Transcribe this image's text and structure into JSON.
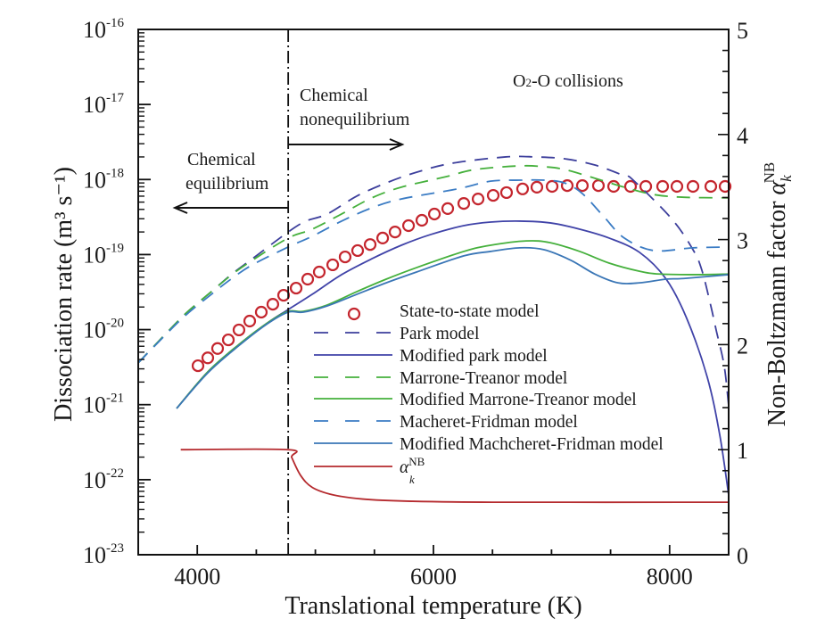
{
  "chart_data": {
    "type": "line",
    "xlabel": "Translational temperature (K)",
    "ylabel": "Dissociation rate (m³ s⁻¹)",
    "y2label": {
      "text": "Non-Boltzmann factor ",
      "symbol": "α",
      "sub": "k",
      "sup": "NB"
    },
    "xlim": [
      3500,
      8500
    ],
    "ylim": [
      1e-23,
      1e-16
    ],
    "yscale": "log",
    "y2lim": [
      0,
      5
    ],
    "xticks": [
      "4000",
      "6000",
      "8000"
    ],
    "xtick_values": [
      4000,
      6000,
      8000
    ],
    "yticks": [
      {
        "base": "10",
        "exp": "-16"
      },
      {
        "base": "10",
        "exp": "-17"
      },
      {
        "base": "10",
        "exp": "-18"
      },
      {
        "base": "10",
        "exp": "-19"
      },
      {
        "base": "10",
        "exp": "-20"
      },
      {
        "base": "10",
        "exp": "-21"
      },
      {
        "base": "10",
        "exp": "-22"
      },
      {
        "base": "10",
        "exp": "-23"
      }
    ],
    "y2ticks": [
      "0",
      "1",
      "2",
      "3",
      "4",
      "5"
    ],
    "grid": false,
    "legend_position": "lower-center",
    "annotations": {
      "title": "O2-O collisions",
      "title_main": "O",
      "title_sub": "2",
      "title_rest": "-O collisions",
      "nonequilibrium_line1": "Chemical",
      "nonequilibrium_line2": "nonequilibrium",
      "equilibrium_line1": "Chemical",
      "equilibrium_line2": "equilibrium",
      "boundary_temperature": 4770
    },
    "series": [
      {
        "name": "State-to-state model",
        "style": "markers-circle",
        "color": "#c4262e",
        "axis": "left",
        "x": [
          4006,
          4089,
          4172,
          4263,
          4353,
          4444,
          4542,
          4640,
          4731,
          4837,
          4935,
          5033,
          5147,
          5252,
          5358,
          5464,
          5570,
          5675,
          5789,
          5902,
          6008,
          6121,
          6257,
          6378,
          6506,
          6619,
          6755,
          6876,
          7005,
          7133,
          7261,
          7397,
          7526,
          7669,
          7798,
          7941,
          8062,
          8198,
          8349,
          8470
        ],
        "y": [
          3.3e-21,
          4.2e-21,
          5.6e-21,
          7.3e-21,
          9.9e-21,
          1.3e-20,
          1.71e-20,
          2.18e-20,
          2.87e-20,
          3.57e-20,
          4.7e-20,
          5.85e-20,
          7.3e-20,
          9.3e-20,
          1.13e-19,
          1.36e-19,
          1.66e-19,
          2e-19,
          2.43e-19,
          2.86e-19,
          3.47e-19,
          4.1e-19,
          4.8e-19,
          5.5e-19,
          6.15e-19,
          6.7e-19,
          7.5e-19,
          7.9e-19,
          8.1e-19,
          8.3e-19,
          8.3e-19,
          8.3e-19,
          8.1e-19,
          8.1e-19,
          8.1e-19,
          8.1e-19,
          8.1e-19,
          8.1e-19,
          8.1e-19,
          8.1e-19
        ]
      },
      {
        "name": "Park model",
        "style": "dashed",
        "color": "#3d3f9c",
        "axis": "left",
        "x": [
          3500,
          3764,
          3915,
          4119,
          4293,
          4467,
          4770,
          4920,
          5101,
          5350,
          5600,
          5857,
          6159,
          6612,
          6861,
          7110,
          7367,
          7616,
          7692,
          8017,
          8198,
          8273,
          8349,
          8394,
          8462,
          8500
        ],
        "y": [
          3.6e-21,
          9.9e-21,
          1.71e-20,
          3.2e-20,
          5.5e-20,
          8.8e-20,
          2e-19,
          2.79e-19,
          3.47e-19,
          6e-19,
          9e-19,
          1.25e-18,
          1.65e-18,
          2e-18,
          2e-18,
          1.89e-18,
          1.56e-18,
          1.12e-18,
          9.8e-19,
          3e-19,
          1.16e-19,
          6.2e-20,
          2.07e-20,
          9.9e-21,
          3.3e-21,
          9.7e-22
        ]
      },
      {
        "name": "Modified park model",
        "style": "solid",
        "color": "#4043a8",
        "axis": "left",
        "x": [
          3825,
          4089,
          4346,
          4595,
          4770,
          4973,
          5222,
          5479,
          5728,
          5977,
          6257,
          6483,
          6733,
          6989,
          7239,
          7488,
          7745,
          7971,
          8145,
          8319,
          8424,
          8500
        ],
        "y": [
          8.9e-22,
          2.73e-21,
          6.2e-21,
          1.23e-20,
          1.85e-20,
          2.95e-20,
          5.4e-20,
          8.8e-20,
          1.33e-19,
          1.85e-19,
          2.43e-19,
          2.71e-19,
          2.79e-19,
          2.64e-19,
          2.18e-19,
          1.66e-19,
          1.07e-19,
          4.7e-20,
          1.41e-20,
          2.32e-21,
          4e-22,
          6.25e-23
        ]
      },
      {
        "name": "Marrone-Treanor model",
        "style": "dashed",
        "color": "#45b03c",
        "axis": "left",
        "x": [
          3500,
          3764,
          3915,
          4119,
          4293,
          4467,
          4770,
          4973,
          5222,
          5479,
          5728,
          6106,
          6355,
          6733,
          6937,
          7110,
          7367,
          7616,
          7866,
          8122,
          8500
        ],
        "y": [
          3.6e-21,
          9.9e-21,
          1.71e-20,
          3.2e-20,
          5.4e-20,
          8.4e-20,
          1.66e-19,
          2.18e-19,
          3.47e-19,
          5.7e-19,
          7.9e-19,
          1.09e-18,
          1.36e-18,
          1.52e-18,
          1.48e-18,
          1.36e-18,
          1.04e-18,
          7.9e-19,
          6.3e-19,
          5.8e-19,
          5.7e-19
        ]
      },
      {
        "name": "Modified Marrone-Treanor model",
        "style": "solid",
        "color": "#45b03c",
        "axis": "left",
        "x": [
          3825,
          4089,
          4346,
          4595,
          4770,
          4897,
          5101,
          5350,
          5600,
          5857,
          6257,
          6483,
          6785,
          6989,
          7239,
          7488,
          7745,
          7918,
          8243,
          8500
        ],
        "y": [
          8.9e-22,
          2.73e-21,
          6.2e-21,
          1.23e-20,
          1.75e-20,
          1.75e-20,
          2.13e-20,
          3.2e-20,
          4.7e-20,
          6.7e-20,
          1.1e-19,
          1.33e-19,
          1.52e-19,
          1.44e-19,
          1.1e-19,
          7.7e-20,
          6e-20,
          5.5e-20,
          5.4e-20,
          5.5e-20
        ]
      },
      {
        "name": "Macheret-Fridman model",
        "style": "dashed",
        "color": "#3b7cc4",
        "axis": "left",
        "x": [
          3500,
          3764,
          3915,
          4119,
          4293,
          4467,
          4770,
          4973,
          5222,
          5479,
          5728,
          6204,
          6483,
          6733,
          6937,
          7110,
          7261,
          7443,
          7616,
          7866,
          8198,
          8500
        ],
        "y": [
          3.6e-21,
          9.6e-21,
          1.62e-20,
          2.95e-20,
          4.8e-20,
          7.3e-20,
          1.26e-19,
          1.75e-19,
          2.79e-19,
          4.2e-19,
          5.5e-19,
          7.5e-19,
          9.5e-19,
          9.8e-19,
          9.8e-19,
          9e-19,
          6.5e-19,
          3.2e-19,
          1.66e-19,
          1.13e-19,
          1.23e-19,
          1.26e-19
        ]
      },
      {
        "name": "Modified Machcheret-Fridman model",
        "style": "solid",
        "color": "#3a76b6",
        "axis": "left",
        "x": [
          3825,
          4089,
          4346,
          4595,
          4770,
          4897,
          5101,
          5350,
          5600,
          5857,
          6257,
          6483,
          6733,
          6937,
          7163,
          7367,
          7563,
          7745,
          7971,
          8122,
          8500
        ],
        "y": [
          8.9e-22,
          2.65e-21,
          6e-21,
          1.2e-20,
          1.71e-20,
          1.71e-20,
          2.07e-20,
          2.95e-20,
          4.2e-20,
          5.85e-20,
          9.6e-20,
          1.1e-19,
          1.23e-19,
          1.16e-19,
          8.4e-20,
          5.5e-20,
          4.2e-20,
          4.2e-20,
          4.7e-20,
          4.8e-20,
          5.4e-20
        ]
      },
      {
        "name": "α_k^NB",
        "name_symbol": "α",
        "name_sub": "k",
        "name_sup": "NB",
        "style": "solid",
        "color": "#b52a2e",
        "axis": "right",
        "x": [
          3860,
          4770,
          4800,
          4875,
          4975,
          5150,
          5400,
          5780,
          6500,
          8500
        ],
        "y": [
          1.0,
          1.0,
          0.925,
          0.755,
          0.64,
          0.57,
          0.53,
          0.51,
          0.5,
          0.5
        ]
      }
    ]
  }
}
